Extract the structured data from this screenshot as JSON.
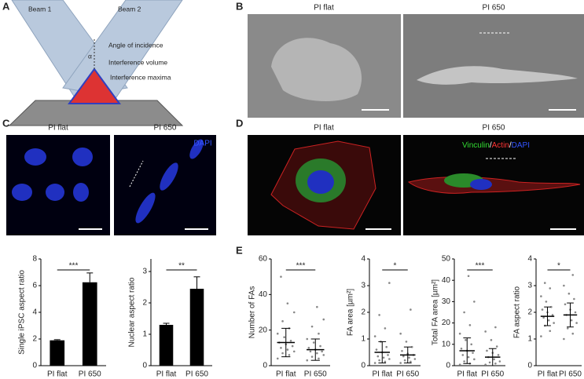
{
  "panel_labels": [
    "A",
    "B",
    "C",
    "D",
    "E"
  ],
  "diagram": {
    "beam_1": "Beam 1",
    "beam_2": "Beam 2",
    "angle": "α",
    "angle_of_incidence": "Angle of incidence",
    "interference_volume": "Interference volume",
    "interference_maxima": "Interference maxima"
  },
  "images": [
    {
      "title": "PI flat"
    },
    {
      "title": "PI 650"
    },
    {
      "title": "PI flat"
    },
    {
      "title": "PI 650"
    },
    {
      "title": "PI flat"
    },
    {
      "title": "PI 650"
    }
  ],
  "dapi_label": "DAPI",
  "stain_legend": [
    "Vinculin",
    "/",
    "Actin",
    "/",
    "DAPI"
  ],
  "stain_colors": [
    "#33dd33",
    "#ffffff",
    "#ff3333",
    "#ffffff",
    "#3355ff"
  ],
  "chart_data": [
    {
      "type": "bar",
      "y_label": "Single iPSC aspect ratio",
      "categories": [
        "PI flat",
        "PI 650"
      ],
      "values": [
        1.9,
        6.25
      ],
      "errors": [
        0.05,
        0.7
      ],
      "ylim": [
        0,
        8
      ],
      "yticks": [
        0,
        2,
        4,
        6,
        8
      ],
      "significance": "***",
      "color": "#000000"
    },
    {
      "type": "bar",
      "y_label": "Nuclear aspect ratio",
      "categories": [
        "PI flat",
        "PI 650"
      ],
      "values": [
        1.3,
        2.45
      ],
      "errors": [
        0.05,
        0.38
      ],
      "ylim": [
        0,
        3.4
      ],
      "yticks": [
        0,
        1,
        2,
        3
      ],
      "significance": "**",
      "color": "#000000"
    },
    {
      "type": "dot",
      "y_label": "Number of FAs",
      "categories": [
        "PI flat",
        "PI 650"
      ],
      "values": [
        13,
        9
      ],
      "errors": [
        8,
        6
      ],
      "points": [
        [
          4,
          6,
          7,
          8,
          9,
          10,
          11,
          12,
          13,
          14,
          16,
          18,
          21,
          25,
          30,
          35,
          50
        ],
        [
          3,
          4,
          5,
          6,
          7,
          8,
          8,
          9,
          10,
          11,
          13,
          15,
          18,
          22,
          26,
          33
        ]
      ],
      "ylim": [
        0,
        60
      ],
      "yticks": [
        0,
        20,
        40,
        60
      ],
      "significance": "***",
      "color": "#000000"
    },
    {
      "type": "dot",
      "y_label": "FA area [µm²]",
      "categories": [
        "PI flat",
        "PI 650"
      ],
      "values": [
        0.5,
        0.4
      ],
      "errors": [
        0.4,
        0.3
      ],
      "points": [
        [
          0.1,
          0.15,
          0.2,
          0.25,
          0.3,
          0.35,
          0.4,
          0.5,
          0.6,
          0.7,
          0.9,
          1.1,
          1.4,
          1.9,
          3.1
        ],
        [
          0.1,
          0.15,
          0.2,
          0.25,
          0.3,
          0.35,
          0.4,
          0.45,
          0.55,
          0.7,
          0.9,
          1.2,
          2.1
        ]
      ],
      "ylim": [
        0,
        4
      ],
      "yticks": [
        0,
        1,
        2,
        3,
        4
      ],
      "significance": "*",
      "color": "#000000"
    },
    {
      "type": "dot",
      "y_label": "Total FA area [µm²]",
      "categories": [
        "PI flat",
        "PI 650"
      ],
      "values": [
        7,
        4
      ],
      "errors": [
        6,
        4
      ],
      "points": [
        [
          0.5,
          1,
          2,
          3,
          4,
          5,
          6,
          7,
          8,
          10,
          12,
          15,
          19,
          25,
          30,
          42
        ],
        [
          0.5,
          1,
          1.5,
          2,
          3,
          4,
          5,
          6,
          7,
          9,
          12,
          16,
          18
        ]
      ],
      "ylim": [
        0,
        50
      ],
      "yticks": [
        0,
        10,
        20,
        30,
        40,
        50
      ],
      "significance": "***",
      "color": "#000000"
    },
    {
      "type": "dot",
      "y_label": "FA aspect ratio",
      "categories": [
        "PI flat",
        "PI 650"
      ],
      "values": [
        1.85,
        1.9
      ],
      "errors": [
        0.35,
        0.45
      ],
      "points": [
        [
          1.1,
          1.3,
          1.5,
          1.6,
          1.7,
          1.8,
          1.9,
          2.0,
          2.1,
          2.2,
          2.4,
          2.6,
          2.9,
          3.1
        ],
        [
          1.0,
          1.2,
          1.4,
          1.6,
          1.7,
          1.9,
          2.0,
          2.1,
          2.3,
          2.5,
          2.7,
          3.0,
          3.4
        ]
      ],
      "ylim": [
        0,
        4
      ],
      "yticks": [
        0,
        1,
        2,
        3,
        4
      ],
      "significance": "*",
      "color": "#000000"
    }
  ]
}
